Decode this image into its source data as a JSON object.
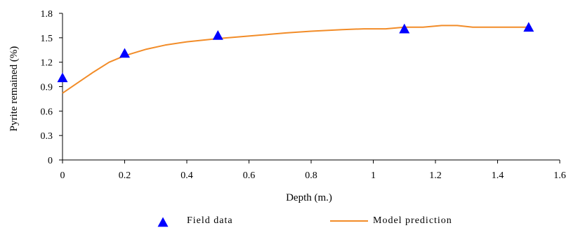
{
  "chart_data": {
    "type": "line",
    "title": "",
    "xlabel": "Depth (m.)",
    "ylabel": "Pyrite remained (%)",
    "xlim": [
      0,
      1.6
    ],
    "ylim": [
      0,
      1.8
    ],
    "x_ticks": [
      "0",
      "0.2",
      "0.4",
      "0.6",
      "0.8",
      "1",
      "1.2",
      "1.4",
      "1.6"
    ],
    "y_ticks": [
      "0",
      "0.3",
      "0.6",
      "0.9",
      "1.2",
      "1.5",
      "1.8"
    ],
    "grid": false,
    "legend_position": "bottom",
    "series": [
      {
        "name": "Field data",
        "kind": "scatter",
        "marker": "triangle",
        "color": "#0000ff",
        "x": [
          0,
          0.2,
          0.5,
          1.1,
          1.5
        ],
        "y": [
          1.0,
          1.3,
          1.52,
          1.6,
          1.62
        ]
      },
      {
        "name": "Model prediction",
        "kind": "line",
        "color": "#f28c28",
        "x": [
          0,
          0.05,
          0.1,
          0.15,
          0.2,
          0.27,
          0.33,
          0.4,
          0.5,
          0.63,
          0.72,
          0.8,
          0.9,
          0.97,
          1.04,
          1.1,
          1.16,
          1.22,
          1.27,
          1.32,
          1.4,
          1.5
        ],
        "y": [
          0.82,
          0.95,
          1.08,
          1.2,
          1.28,
          1.36,
          1.41,
          1.45,
          1.49,
          1.53,
          1.56,
          1.58,
          1.6,
          1.61,
          1.61,
          1.63,
          1.63,
          1.65,
          1.65,
          1.63,
          1.63,
          1.63
        ]
      }
    ]
  }
}
